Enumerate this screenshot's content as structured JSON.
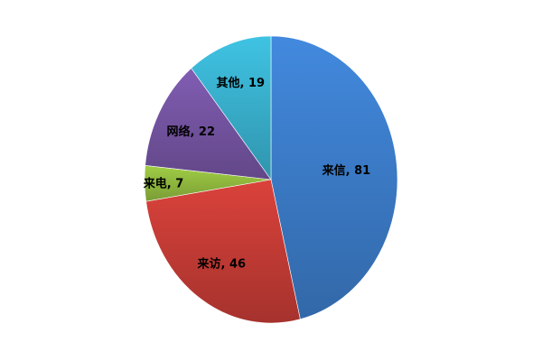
{
  "chart_data": {
    "type": "pie",
    "title": "",
    "start": "top",
    "direction": "clockwise",
    "label_format": "category, value",
    "legend": "none",
    "slices": [
      {
        "label": "来信",
        "value": 81,
        "color": "#3b7ac6"
      },
      {
        "label": "来访",
        "value": 46,
        "color": "#c33b35"
      },
      {
        "label": "来电",
        "value": 7,
        "color": "#8fb83e"
      },
      {
        "label": "网络",
        "value": 22,
        "color": "#7353a0"
      },
      {
        "label": "其他",
        "value": 19,
        "color": "#38aecb"
      }
    ]
  }
}
